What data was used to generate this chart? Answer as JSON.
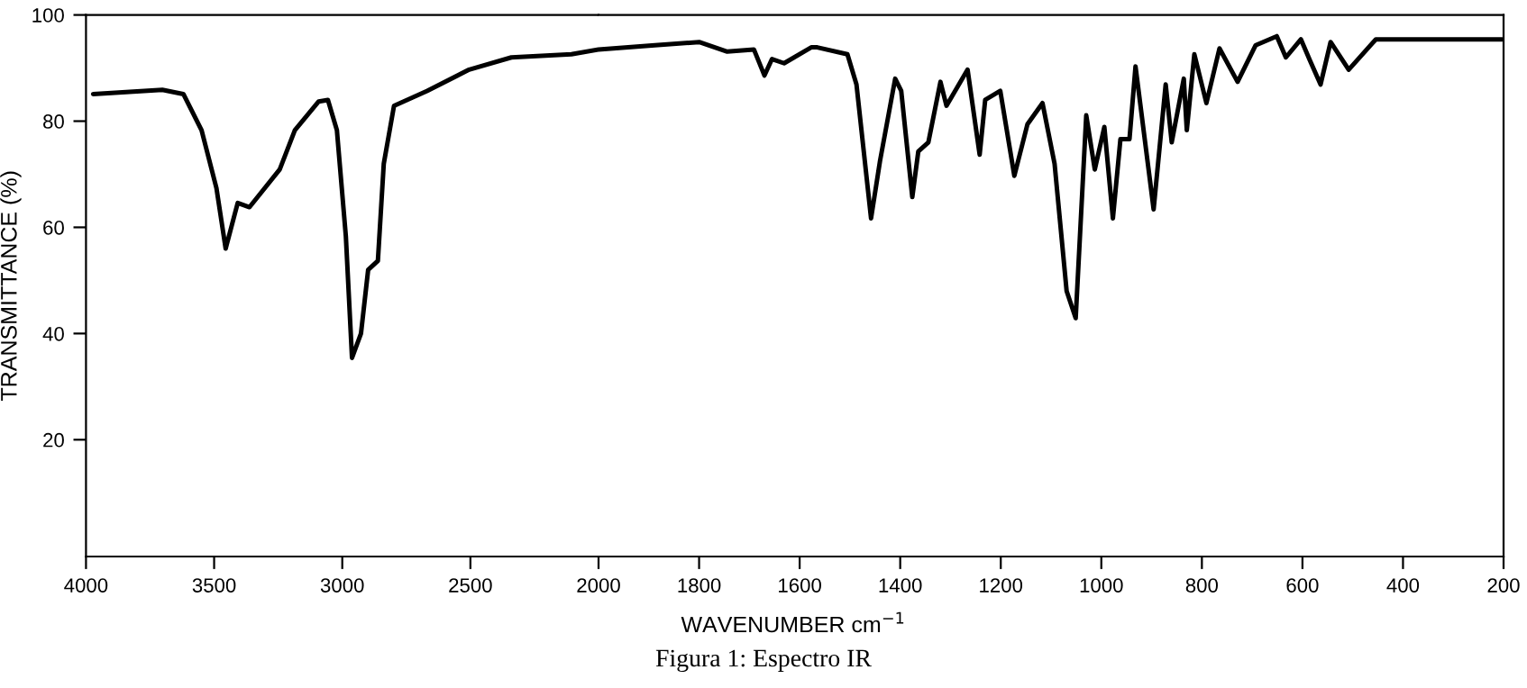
{
  "chart_data": [
    {
      "type": "line",
      "ylabel": "TRANSMITTANCE (%)",
      "xlim": [
        4000,
        2000
      ],
      "ylim": [
        -2,
        100
      ],
      "xticks": [
        4000,
        3500,
        3000,
        2500,
        2000
      ],
      "yticks": [
        20,
        40,
        60,
        80,
        100
      ],
      "grid": false,
      "legend": false,
      "marker": "none",
      "line_style": "solid",
      "series": [
        {
          "color": "#000000",
          "x": [
            3972,
            3702,
            3620,
            3549,
            3491,
            3455,
            3408,
            3362,
            3244,
            3185,
            3092,
            3056,
            3021,
            2986,
            2962,
            2927,
            2899,
            2861,
            2838,
            2798,
            2669,
            2505,
            2340,
            2106,
            2000
          ],
          "values": [
            85.1,
            85.9,
            85.1,
            78.3,
            67.4,
            56.0,
            64.6,
            63.8,
            70.9,
            78.3,
            83.7,
            84.0,
            78.3,
            58.3,
            35.4,
            40.0,
            52.0,
            53.7,
            72.0,
            82.9,
            85.7,
            89.7,
            92.0,
            92.6,
            93.5
          ]
        }
      ]
    },
    {
      "type": "line",
      "xlabel": "WAVENUMBER cm$^{−1}$",
      "annotations": [
        "Figura 1: Espectro IR"
      ],
      "xlim": [
        2000,
        200
      ],
      "ylim": [
        -2,
        100
      ],
      "xticks": [
        1800,
        1600,
        1400,
        1200,
        1000,
        800,
        600,
        400,
        200
      ],
      "tick_labels": "x",
      "grid": false,
      "legend": false,
      "marker": "none",
      "line_style": "solid",
      "series": [
        {
          "color": "#000000",
          "x": [
            2000,
            1888,
            1800,
            1744,
            1691,
            1670,
            1655,
            1631,
            1577,
            1565,
            1505,
            1487,
            1458,
            1440,
            1410,
            1398,
            1376,
            1364,
            1344,
            1320,
            1308,
            1266,
            1242,
            1231,
            1201,
            1173,
            1147,
            1117,
            1093,
            1069,
            1051,
            1030,
            1013,
            994,
            977,
            962,
            944,
            932,
            896,
            872,
            860,
            836,
            830,
            815,
            791,
            765,
            729,
            693,
            651,
            633,
            603,
            585,
            564,
            544,
            508,
            454,
            394,
            203
          ],
          "values": [
            93.5,
            94.3,
            94.9,
            93.1,
            93.5,
            88.6,
            91.7,
            90.9,
            93.9,
            93.9,
            92.6,
            86.9,
            61.7,
            72.6,
            88.0,
            85.7,
            65.7,
            74.3,
            76.0,
            87.4,
            82.9,
            89.7,
            73.7,
            84.0,
            85.7,
            69.7,
            79.4,
            83.4,
            72.0,
            48.0,
            42.9,
            81.1,
            70.9,
            78.9,
            61.7,
            76.6,
            76.6,
            90.3,
            63.4,
            86.9,
            76.0,
            88.0,
            78.3,
            92.6,
            83.4,
            93.7,
            87.4,
            94.3,
            96.0,
            92.0,
            95.4,
            91.4,
            86.9,
            94.9,
            89.7,
            95.4,
            95.4,
            95.4
          ]
        }
      ]
    }
  ]
}
